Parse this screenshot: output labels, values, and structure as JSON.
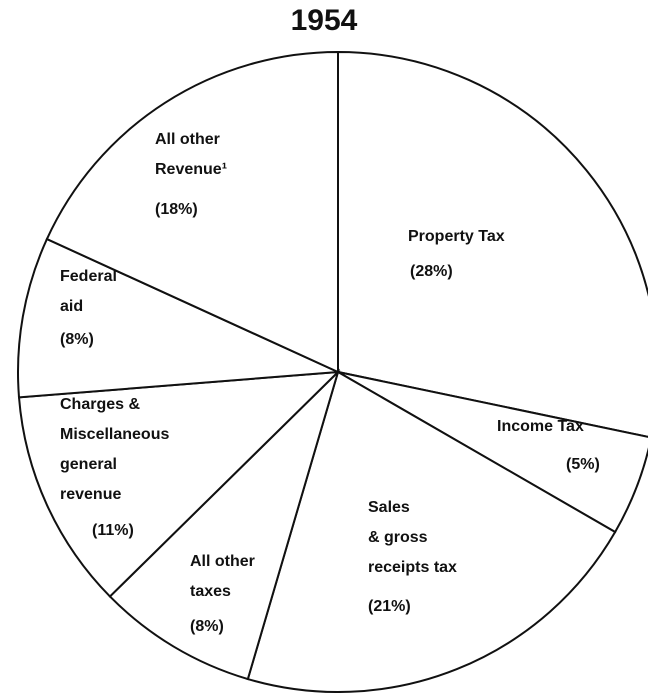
{
  "chart_data": {
    "type": "pie",
    "title": "1954",
    "categories": [
      "Property Tax",
      "Income Tax",
      "Sales\n& gross\nreceipts tax",
      "All other\ntaxes",
      "Charges &\nMiscellaneous\ngeneral\nrevenue",
      "Federal\naid",
      "All other\nRevenue¹"
    ],
    "values": [
      28,
      5,
      21,
      8,
      11,
      8,
      18
    ],
    "value_labels": [
      "(28%)",
      "(5%)",
      "(21%)",
      "(8%)",
      "(11%)",
      "(8%)",
      "(18%)"
    ],
    "color": "#ffffff"
  }
}
